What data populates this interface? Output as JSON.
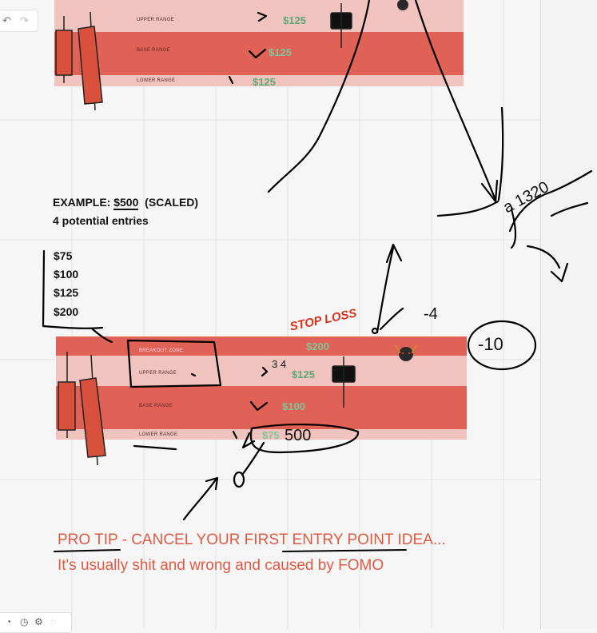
{
  "chart_top": {
    "labels": [
      "UPPER RANGE",
      "BASE RANGE",
      "LOWER RANGE"
    ],
    "prices": [
      "$125",
      "$125",
      "$125"
    ]
  },
  "example": {
    "line1_prefix": "EXAMPLE: ",
    "line1_amount": "$500",
    "line1_suffix": "  (SCALED)",
    "line2": "4 potential entries",
    "entries": [
      "$75",
      "$100",
      "$125",
      "$200"
    ]
  },
  "chart_bottom": {
    "labels": [
      "BREAKOUT ZONE",
      "UPPER RANGE",
      "BASE RANGE",
      "LOWER RANGE"
    ],
    "prices": [
      "$200",
      "$125",
      "$100",
      "$75"
    ]
  },
  "annotations": {
    "stop_loss": "STOP LOSS",
    "minus4": "-4",
    "minus10": "-10",
    "scrawl_mid": "a 1320",
    "bottom_500": "500",
    "zero": "0",
    "three_four": "3 4"
  },
  "pro_tip": {
    "line1_a": "PRO TIP",
    "line1_b": " - CANCEL YOUR FIR",
    "line1_c": "ST ENTRY POINT",
    "line1_d": " IDEA...",
    "line2": "It's usually shit and wrong and caused by FOMO"
  },
  "colors": {
    "band_light": "#f0c3bf",
    "band_dark": "#e06155",
    "price_green": "#5aa874",
    "tip_red": "#df5a42",
    "candle": "#d9503d"
  },
  "icons": [
    "bull-icon",
    "undo-icon",
    "redo-icon",
    "toolbar-icons"
  ]
}
